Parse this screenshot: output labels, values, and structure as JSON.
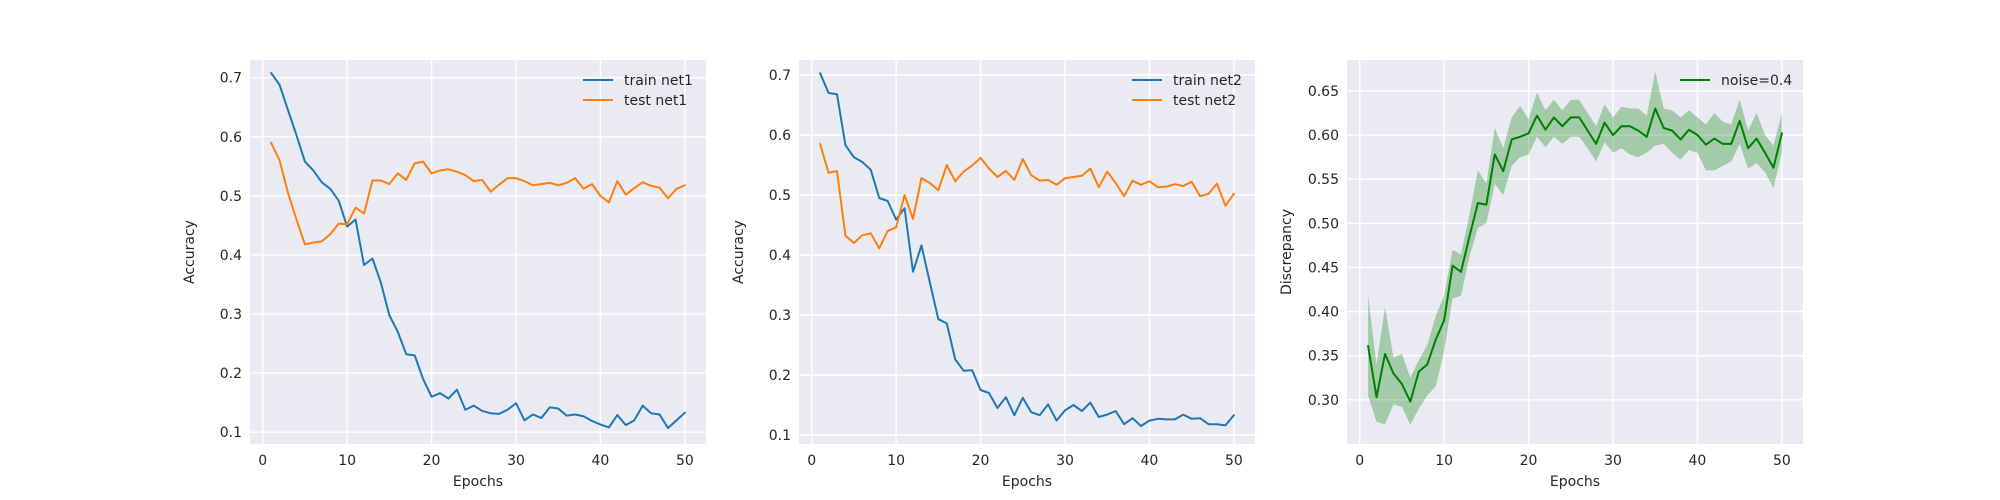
{
  "chart_data": [
    {
      "type": "line",
      "xlabel": "Epochs",
      "ylabel": "Accuracy",
      "xlim": [
        -1.5,
        52.5
      ],
      "ylim": [
        0.08,
        0.73
      ],
      "xticks": [
        0,
        10,
        20,
        30,
        40,
        50
      ],
      "yticks": [
        0.1,
        0.2,
        0.3,
        0.4,
        0.5,
        0.6,
        0.7
      ],
      "ytick_labels": [
        "0.1",
        "0.2",
        "0.3",
        "0.4",
        "0.5",
        "0.6",
        "0.7"
      ],
      "grid": true,
      "legend_position": "upper right",
      "x": [
        1,
        2,
        3,
        4,
        5,
        6,
        7,
        8,
        9,
        10,
        11,
        12,
        13,
        14,
        15,
        16,
        17,
        18,
        19,
        20,
        21,
        22,
        23,
        24,
        25,
        26,
        27,
        28,
        29,
        30,
        31,
        32,
        33,
        34,
        35,
        36,
        37,
        38,
        39,
        40,
        41,
        42,
        43,
        44,
        45,
        46,
        47,
        48,
        49,
        50
      ],
      "series": [
        {
          "name": "train net1",
          "color": "#1f77b4",
          "values": [
            0.708,
            0.688,
            0.645,
            0.603,
            0.558,
            0.543,
            0.523,
            0.512,
            0.492,
            0.448,
            0.46,
            0.383,
            0.394,
            0.353,
            0.298,
            0.27,
            0.232,
            0.23,
            0.19,
            0.16,
            0.166,
            0.157,
            0.172,
            0.138,
            0.145,
            0.136,
            0.132,
            0.131,
            0.138,
            0.149,
            0.12,
            0.13,
            0.124,
            0.142,
            0.14,
            0.128,
            0.13,
            0.127,
            0.119,
            0.113,
            0.108,
            0.129,
            0.112,
            0.12,
            0.145,
            0.132,
            0.13,
            0.107,
            0.12,
            0.133
          ]
        },
        {
          "name": "test net1",
          "color": "#ff7f0e",
          "values": [
            0.59,
            0.56,
            0.505,
            0.46,
            0.418,
            0.421,
            0.423,
            0.435,
            0.453,
            0.452,
            0.48,
            0.47,
            0.526,
            0.526,
            0.52,
            0.538,
            0.527,
            0.555,
            0.558,
            0.538,
            0.543,
            0.545,
            0.541,
            0.535,
            0.525,
            0.527,
            0.507,
            0.519,
            0.53,
            0.53,
            0.525,
            0.518,
            0.52,
            0.522,
            0.518,
            0.522,
            0.53,
            0.512,
            0.52,
            0.5,
            0.489,
            0.525,
            0.502,
            0.513,
            0.523,
            0.517,
            0.514,
            0.496,
            0.512,
            0.518
          ]
        }
      ]
    },
    {
      "type": "line",
      "xlabel": "Epochs",
      "ylabel": "Accuracy",
      "xlim": [
        -1.5,
        52.5
      ],
      "ylim": [
        0.085,
        0.725
      ],
      "xticks": [
        0,
        10,
        20,
        30,
        40,
        50
      ],
      "yticks": [
        0.1,
        0.2,
        0.3,
        0.4,
        0.5,
        0.6,
        0.7
      ],
      "ytick_labels": [
        "0.1",
        "0.2",
        "0.3",
        "0.4",
        "0.5",
        "0.6",
        "0.7"
      ],
      "grid": true,
      "legend_position": "upper right",
      "x": [
        1,
        2,
        3,
        4,
        5,
        6,
        7,
        8,
        9,
        10,
        11,
        12,
        13,
        14,
        15,
        16,
        17,
        18,
        19,
        20,
        21,
        22,
        23,
        24,
        25,
        26,
        27,
        28,
        29,
        30,
        31,
        32,
        33,
        34,
        35,
        36,
        37,
        38,
        39,
        40,
        41,
        42,
        43,
        44,
        45,
        46,
        47,
        48,
        49,
        50
      ],
      "series": [
        {
          "name": "train net2",
          "color": "#1f77b4",
          "values": [
            0.703,
            0.67,
            0.668,
            0.583,
            0.563,
            0.555,
            0.542,
            0.495,
            0.49,
            0.459,
            0.478,
            0.372,
            0.416,
            0.354,
            0.293,
            0.286,
            0.226,
            0.207,
            0.208,
            0.175,
            0.17,
            0.145,
            0.163,
            0.133,
            0.162,
            0.138,
            0.133,
            0.151,
            0.124,
            0.141,
            0.15,
            0.14,
            0.154,
            0.13,
            0.134,
            0.14,
            0.118,
            0.128,
            0.115,
            0.124,
            0.127,
            0.126,
            0.126,
            0.134,
            0.127,
            0.128,
            0.118,
            0.118,
            0.116,
            0.133
          ]
        },
        {
          "name": "test net2",
          "color": "#ff7f0e",
          "values": [
            0.585,
            0.537,
            0.54,
            0.432,
            0.42,
            0.433,
            0.436,
            0.411,
            0.44,
            0.446,
            0.5,
            0.46,
            0.528,
            0.52,
            0.508,
            0.55,
            0.523,
            0.539,
            0.549,
            0.562,
            0.544,
            0.53,
            0.54,
            0.525,
            0.56,
            0.533,
            0.524,
            0.525,
            0.517,
            0.528,
            0.53,
            0.532,
            0.544,
            0.513,
            0.539,
            0.52,
            0.498,
            0.524,
            0.517,
            0.523,
            0.513,
            0.514,
            0.518,
            0.515,
            0.522,
            0.498,
            0.502,
            0.519,
            0.482,
            0.502
          ]
        }
      ]
    },
    {
      "type": "line",
      "xlabel": "Epochs",
      "ylabel": "Discrepancy",
      "xlim": [
        -1.5,
        52.5
      ],
      "ylim": [
        0.25,
        0.685
      ],
      "xticks": [
        0,
        10,
        20,
        30,
        40,
        50
      ],
      "yticks": [
        0.3,
        0.35,
        0.4,
        0.45,
        0.5,
        0.55,
        0.6,
        0.65
      ],
      "ytick_labels": [
        "0.30",
        "0.35",
        "0.40",
        "0.45",
        "0.50",
        "0.55",
        "0.60",
        "0.65"
      ],
      "grid": true,
      "legend_position": "upper right",
      "x": [
        1,
        2,
        3,
        4,
        5,
        6,
        7,
        8,
        9,
        10,
        11,
        12,
        13,
        14,
        15,
        16,
        17,
        18,
        19,
        20,
        21,
        22,
        23,
        24,
        25,
        26,
        27,
        28,
        29,
        30,
        31,
        32,
        33,
        34,
        35,
        36,
        37,
        38,
        39,
        40,
        41,
        42,
        43,
        44,
        45,
        46,
        47,
        48,
        49,
        50
      ],
      "series": [
        {
          "name": "noise=0.4",
          "color": "#008000",
          "band_color": "#008000",
          "values": [
            0.361,
            0.303,
            0.352,
            0.33,
            0.318,
            0.298,
            0.332,
            0.34,
            0.368,
            0.39,
            0.452,
            0.445,
            0.485,
            0.523,
            0.521,
            0.578,
            0.559,
            0.595,
            0.598,
            0.602,
            0.622,
            0.606,
            0.62,
            0.61,
            0.62,
            0.62,
            0.605,
            0.59,
            0.614,
            0.6,
            0.61,
            0.61,
            0.605,
            0.598,
            0.63,
            0.608,
            0.605,
            0.595,
            0.606,
            0.6,
            0.589,
            0.596,
            0.59,
            0.59,
            0.616,
            0.585,
            0.596,
            0.58,
            0.563,
            0.602
          ],
          "lower": [
            0.305,
            0.275,
            0.272,
            0.295,
            0.292,
            0.272,
            0.29,
            0.305,
            0.315,
            0.355,
            0.415,
            0.418,
            0.462,
            0.495,
            0.5,
            0.545,
            0.532,
            0.565,
            0.575,
            0.578,
            0.598,
            0.586,
            0.598,
            0.59,
            0.598,
            0.598,
            0.585,
            0.57,
            0.592,
            0.58,
            0.585,
            0.578,
            0.575,
            0.58,
            0.588,
            0.59,
            0.58,
            0.572,
            0.583,
            0.58,
            0.56,
            0.56,
            0.565,
            0.57,
            0.59,
            0.562,
            0.568,
            0.558,
            0.54,
            0.58
          ],
          "upper": [
            0.418,
            0.34,
            0.405,
            0.348,
            0.352,
            0.325,
            0.345,
            0.362,
            0.395,
            0.418,
            0.47,
            0.465,
            0.51,
            0.56,
            0.545,
            0.608,
            0.585,
            0.62,
            0.633,
            0.618,
            0.648,
            0.628,
            0.64,
            0.628,
            0.64,
            0.64,
            0.625,
            0.61,
            0.635,
            0.62,
            0.632,
            0.63,
            0.63,
            0.622,
            0.672,
            0.63,
            0.628,
            0.62,
            0.628,
            0.62,
            0.612,
            0.625,
            0.615,
            0.612,
            0.64,
            0.605,
            0.625,
            0.6,
            0.588,
            0.625
          ]
        }
      ]
    }
  ]
}
